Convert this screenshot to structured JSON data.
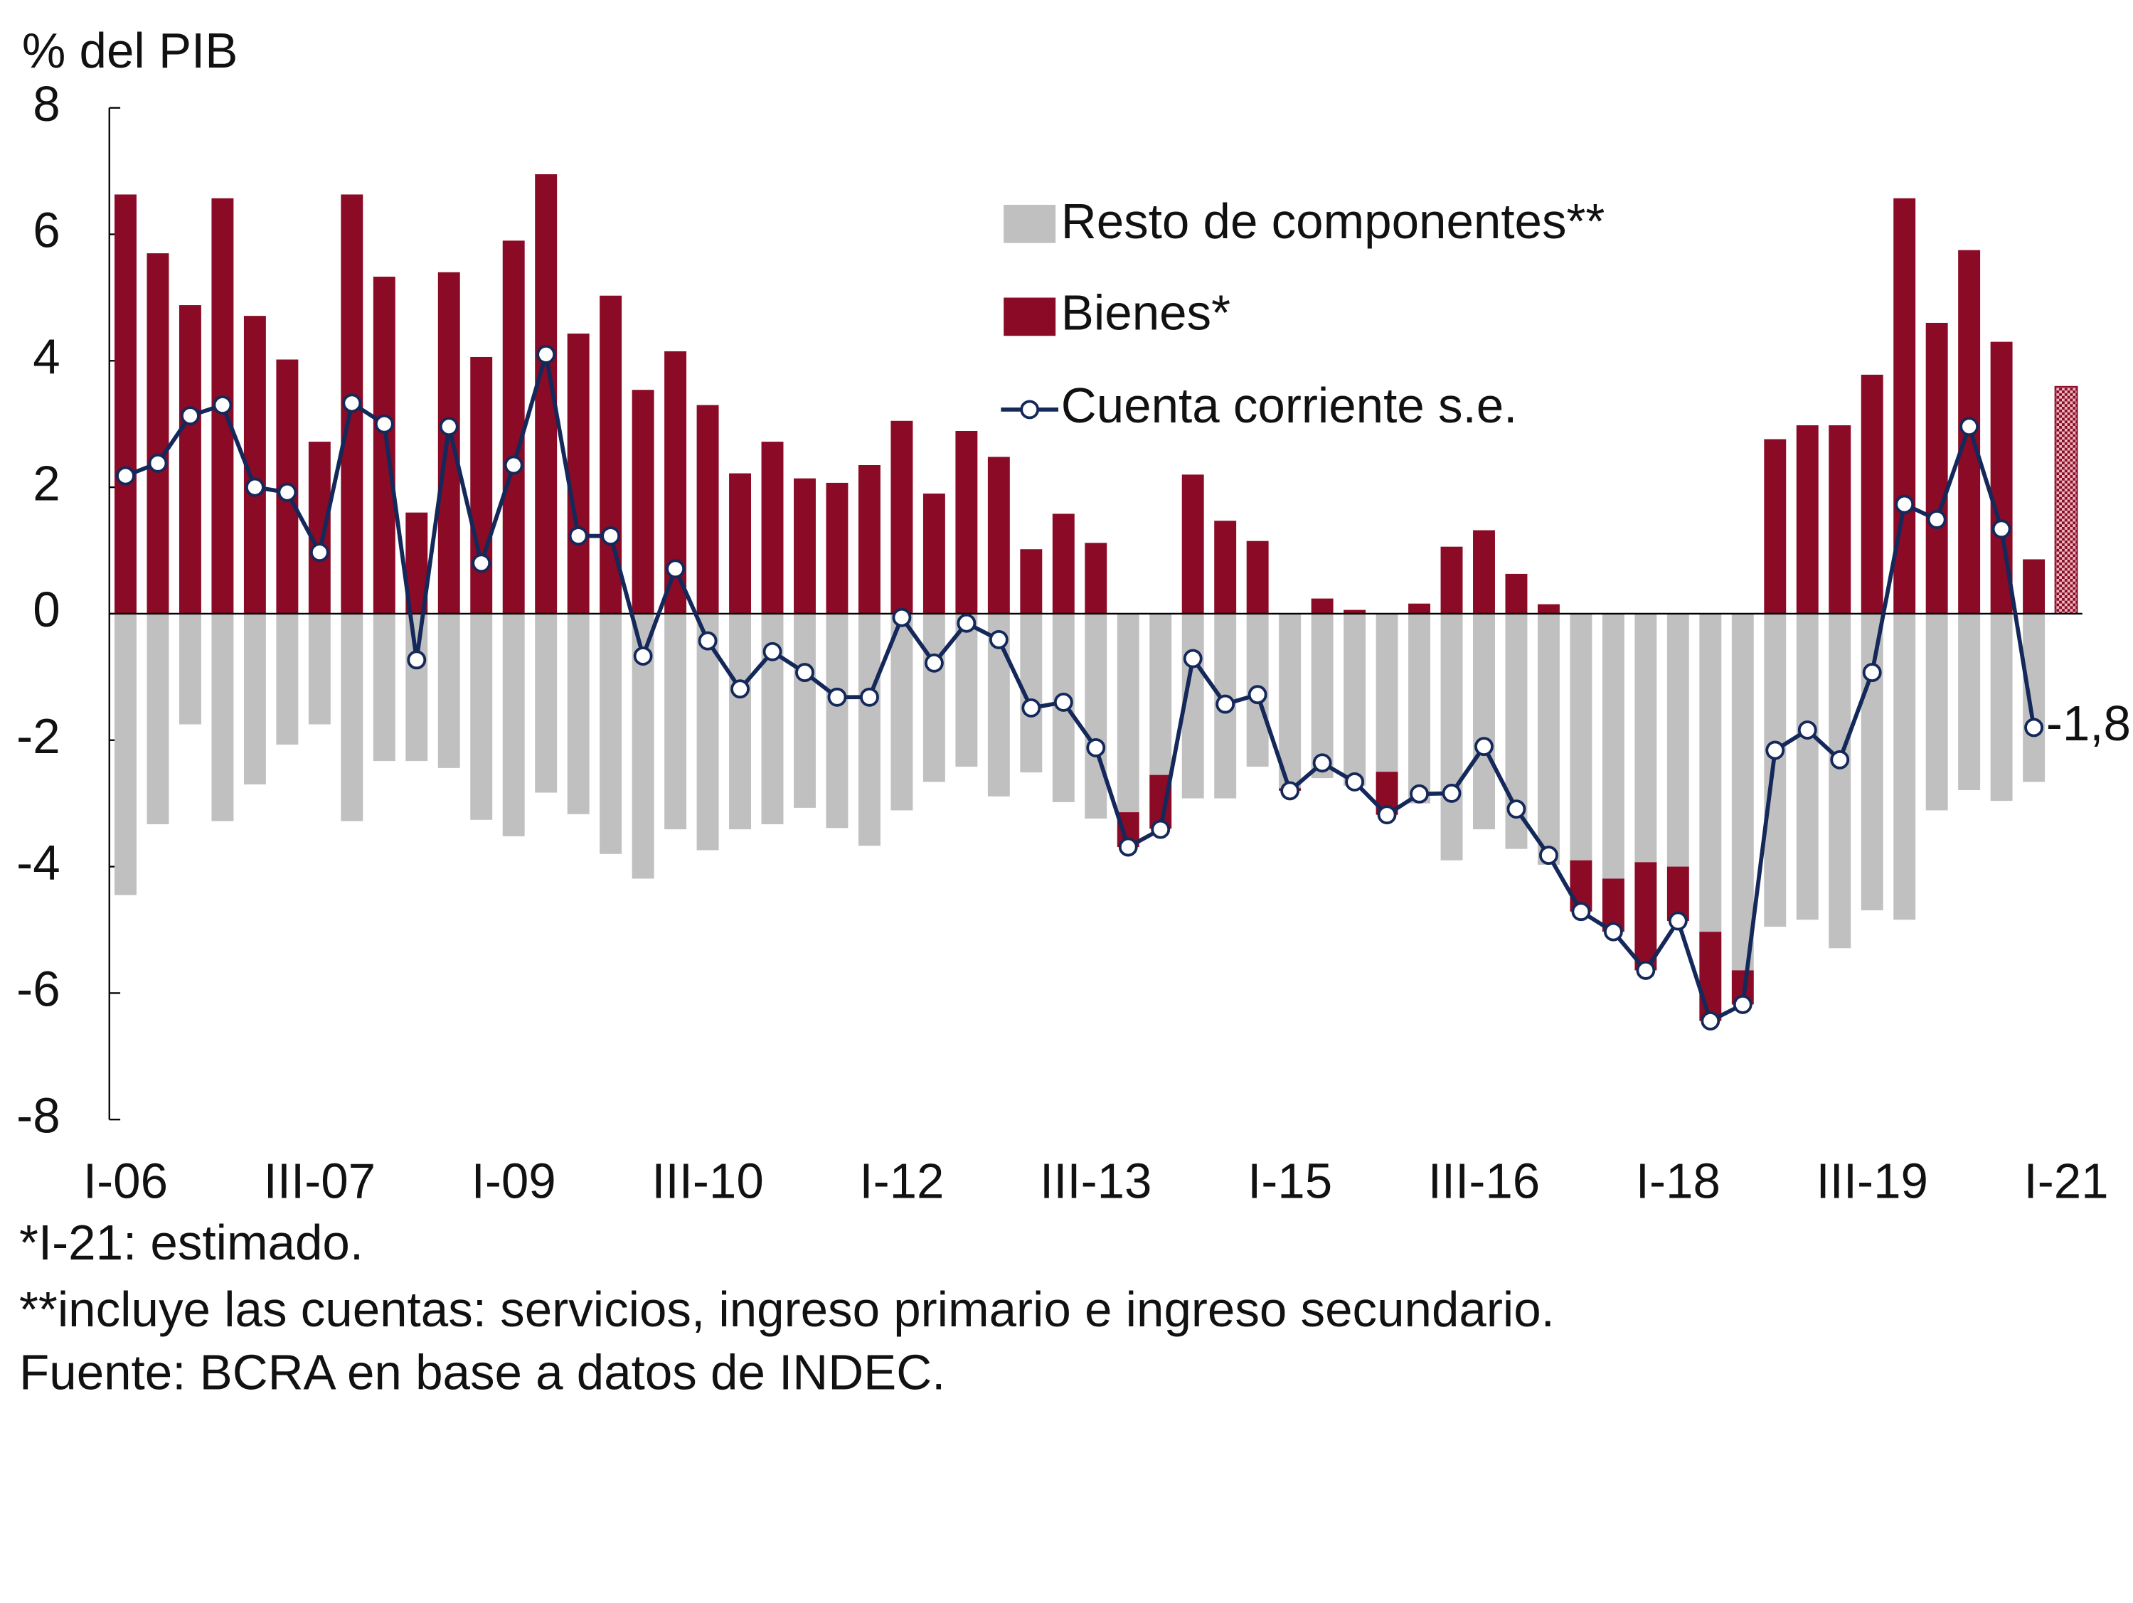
{
  "chart_data": {
    "type": "bar-line",
    "ylabel": "% del PIB",
    "categories": [
      "I-06",
      null,
      null,
      null,
      null,
      null,
      "III-07",
      null,
      null,
      null,
      null,
      null,
      "I-09",
      null,
      null,
      null,
      null,
      null,
      "III-10",
      null,
      null,
      null,
      null,
      null,
      "I-12",
      null,
      null,
      null,
      null,
      null,
      "III-13",
      null,
      null,
      null,
      null,
      null,
      "I-15",
      null,
      null,
      null,
      null,
      null,
      "III-16",
      null,
      null,
      null,
      null,
      null,
      "I-18",
      null,
      null,
      null,
      null,
      null,
      "III-19",
      null,
      null,
      null,
      null,
      null,
      "I-21"
    ],
    "series": [
      {
        "name": "Resto de componentes**",
        "color": "#c0c0c0",
        "kind": "bar",
        "values": [
          -4.45,
          -3.33,
          -1.75,
          -3.28,
          -2.7,
          -2.07,
          -1.75,
          -3.28,
          -2.33,
          -2.33,
          -2.44,
          -3.26,
          -3.52,
          -2.83,
          -3.17,
          -3.8,
          -4.19,
          -3.41,
          -3.74,
          -3.41,
          -3.33,
          -3.07,
          -3.39,
          -3.67,
          -3.11,
          -2.66,
          -2.42,
          -2.89,
          -2.51,
          -2.98,
          -3.24,
          -3.14,
          -2.55,
          -2.92,
          -2.92,
          -2.42,
          -2.76,
          -2.6,
          -2.72,
          -2.5,
          -3.0,
          -3.9,
          -3.41,
          -3.72,
          -3.97,
          -3.9,
          -4.19,
          -3.93,
          -4.0,
          -5.03,
          -5.64,
          -4.95,
          -4.84,
          -5.29,
          -4.69,
          -4.84,
          -3.11,
          -2.79,
          -2.96,
          -2.66,
          null
        ]
      },
      {
        "name": "Bienes*",
        "color": "#8b0a25",
        "kind": "bar",
        "hatch_last": true,
        "values": [
          6.63,
          5.7,
          4.88,
          6.57,
          4.71,
          4.02,
          2.72,
          6.63,
          5.33,
          1.6,
          5.4,
          4.06,
          5.9,
          6.95,
          4.43,
          5.03,
          3.54,
          4.15,
          3.3,
          2.22,
          2.72,
          2.14,
          2.07,
          2.35,
          3.05,
          1.9,
          2.89,
          2.48,
          1.02,
          1.58,
          1.12,
          -0.55,
          -0.85,
          2.2,
          1.47,
          1.15,
          -0.04,
          0.24,
          0.06,
          -0.68,
          0.16,
          1.06,
          1.32,
          0.63,
          0.15,
          -0.81,
          -0.84,
          -1.71,
          -0.86,
          -1.41,
          -0.54,
          2.76,
          2.98,
          2.98,
          3.78,
          6.57,
          4.6,
          5.75,
          4.3,
          0.86,
          3.59
        ]
      },
      {
        "name": "Cuenta corriente s.e.",
        "color": "#14285a",
        "kind": "line",
        "values": [
          2.18,
          2.38,
          3.13,
          3.3,
          2.0,
          1.92,
          0.97,
          3.33,
          3.0,
          -0.73,
          2.96,
          0.8,
          2.35,
          4.1,
          1.23,
          1.23,
          -0.67,
          0.71,
          -0.43,
          -1.19,
          -0.6,
          -0.93,
          -1.32,
          -1.32,
          -0.06,
          -0.78,
          -0.15,
          -0.41,
          -1.49,
          -1.4,
          -2.12,
          -3.69,
          -3.41,
          -0.71,
          -1.43,
          -1.28,
          -2.8,
          -2.36,
          -2.66,
          -3.18,
          -2.85,
          -2.84,
          -2.1,
          -3.09,
          -3.82,
          -4.71,
          -5.03,
          -5.64,
          -4.86,
          -6.44,
          -6.18,
          -2.16,
          -1.84,
          -2.31,
          -0.93,
          1.73,
          1.49,
          2.96,
          1.34,
          -1.8,
          null
        ],
        "value_labels": [
          null,
          null,
          null,
          null,
          null,
          null,
          null,
          null,
          null,
          null,
          null,
          null,
          null,
          null,
          null,
          null,
          null,
          null,
          null,
          null,
          null,
          null,
          null,
          null,
          null,
          null,
          null,
          null,
          null,
          null,
          null,
          null,
          null,
          null,
          null,
          null,
          null,
          null,
          null,
          null,
          null,
          null,
          null,
          null,
          null,
          null,
          null,
          null,
          null,
          null,
          null,
          null,
          null,
          null,
          null,
          null,
          null,
          null,
          null,
          "-1,8",
          null
        ]
      }
    ],
    "ylim": [
      -8,
      8
    ],
    "yticks": [
      -8,
      -6,
      -4,
      -2,
      0,
      2,
      4,
      6,
      8
    ],
    "notes": [
      "*I-21: estimado.",
      "**incluye las cuentas: servicios, ingreso primario e ingreso secundario.",
      "Fuente: BCRA en base a datos de INDEC."
    ]
  }
}
